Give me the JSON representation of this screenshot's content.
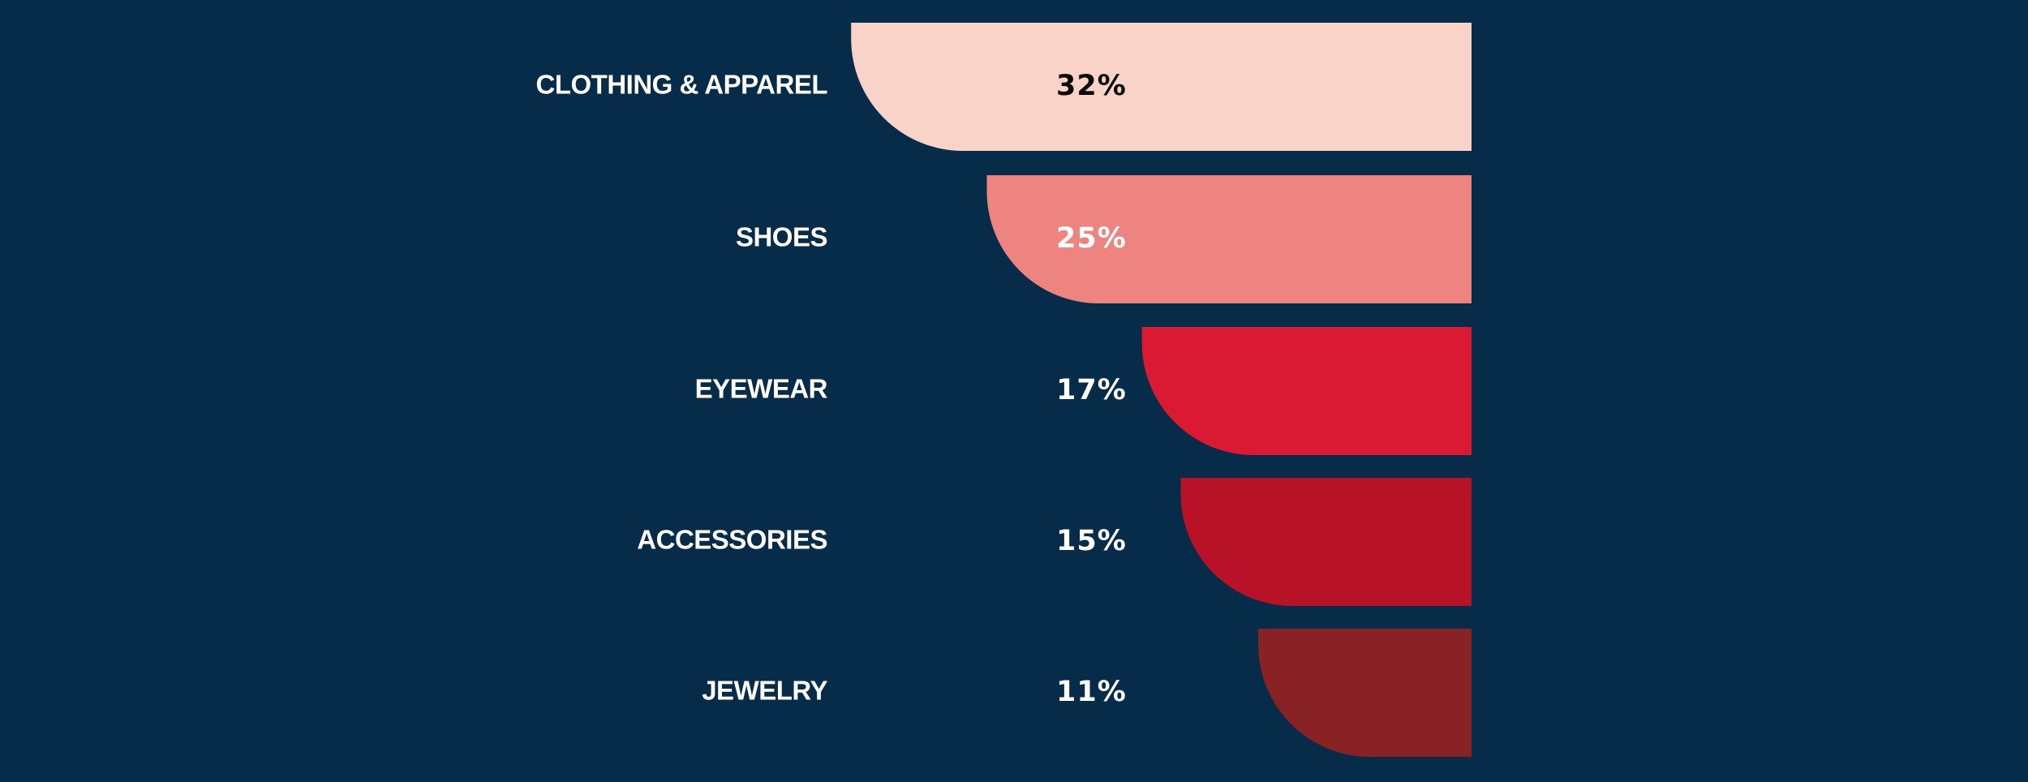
{
  "chart_data": {
    "type": "bar",
    "orientation": "horizontal",
    "categories": [
      "CLOTHING & APPAREL",
      "SHOES",
      "EYEWEAR",
      "ACCESSORIES",
      "JEWELRY"
    ],
    "values": [
      32,
      25,
      17,
      15,
      11
    ],
    "value_labels": [
      "32%",
      "25%",
      "17%",
      "15%",
      "11%"
    ],
    "unit": "%",
    "colors": [
      "#f9d2c8",
      "#ee8480",
      "#da1a33",
      "#b71228",
      "#882225"
    ],
    "value_label_colors": [
      "#0b0b0b",
      "#ffffff",
      "#ffffff",
      "#ffffff",
      "#ffffff"
    ],
    "background": "#062c49",
    "bar_alignment": "right",
    "title": "",
    "xlabel": "",
    "ylabel": "",
    "legend": "none",
    "grid": false
  }
}
